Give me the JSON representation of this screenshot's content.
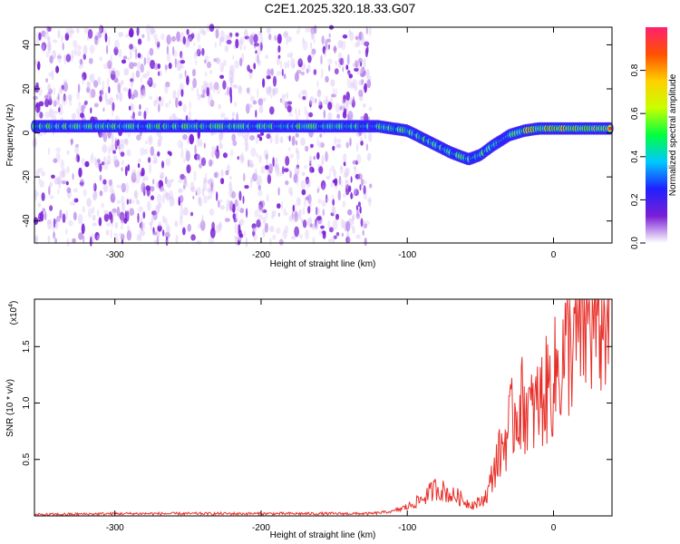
{
  "title": "C2E1.2025.320.18.33.G07",
  "chart_data": [
    {
      "type": "heatmap",
      "xlabel": "Height of straight line (km)",
      "ylabel": "Frequency (Hz)",
      "xlim": [
        -355,
        40
      ],
      "ylim": [
        -50,
        48
      ],
      "xticks": [
        -300,
        -200,
        -100,
        0
      ],
      "yticks": [
        -40,
        -20,
        0,
        20,
        40
      ],
      "colorbar": {
        "label": "Normalized spectral amplitude",
        "range": [
          0.0,
          1.0
        ],
        "ticks": [
          0.0,
          0.2,
          0.4,
          0.6,
          0.8
        ],
        "colormap": [
          "#ffffff",
          "#7a1fd6",
          "#2020ff",
          "#00c8ff",
          "#00ff40",
          "#c8ff00",
          "#ffd000",
          "#ff5000",
          "#ff2070"
        ]
      },
      "ridge": {
        "description_points": [
          [
            -355,
            3
          ],
          [
            -120,
            3
          ],
          [
            -100,
            1
          ],
          [
            -85,
            -4
          ],
          [
            -70,
            -9
          ],
          [
            -58,
            -12
          ],
          [
            -50,
            -10
          ],
          [
            -42,
            -6
          ],
          [
            -30,
            -1
          ],
          [
            -20,
            1
          ],
          [
            -10,
            2
          ],
          [
            0,
            2
          ],
          [
            40,
            2
          ]
        ]
      },
      "noise_extent_x": [
        -355,
        -125
      ]
    },
    {
      "type": "line",
      "xlabel": "Height of straight line (km)",
      "ylabel": "SNR (10 * v/v)",
      "y_multiplier": "(x10",
      "y_multiplier_exp": "4",
      "xlim": [
        -355,
        40
      ],
      "ylim": [
        0,
        1.92
      ],
      "xticks": [
        -300,
        -200,
        -100,
        0
      ],
      "yticks": [
        0.5,
        1.0,
        1.5
      ],
      "series": [
        {
          "color": "#e8302a",
          "x": [
            -355,
            -300,
            -250,
            -200,
            -150,
            -125,
            -110,
            -100,
            -90,
            -80,
            -75,
            -70,
            -65,
            -60,
            -55,
            -50,
            -45,
            -40,
            -35,
            -30,
            -25,
            -20,
            -15,
            -10,
            -5,
            0,
            5,
            10,
            15,
            20,
            25,
            30,
            35,
            40
          ],
          "y": [
            0.01,
            0.02,
            0.02,
            0.02,
            0.02,
            0.02,
            0.04,
            0.08,
            0.15,
            0.25,
            0.22,
            0.18,
            0.17,
            0.12,
            0.1,
            0.12,
            0.2,
            0.45,
            0.6,
            0.8,
            0.95,
            1.0,
            0.9,
            1.0,
            1.1,
            1.2,
            1.35,
            1.5,
            1.6,
            1.7,
            1.75,
            1.8,
            1.85,
            1.88
          ]
        }
      ]
    }
  ]
}
